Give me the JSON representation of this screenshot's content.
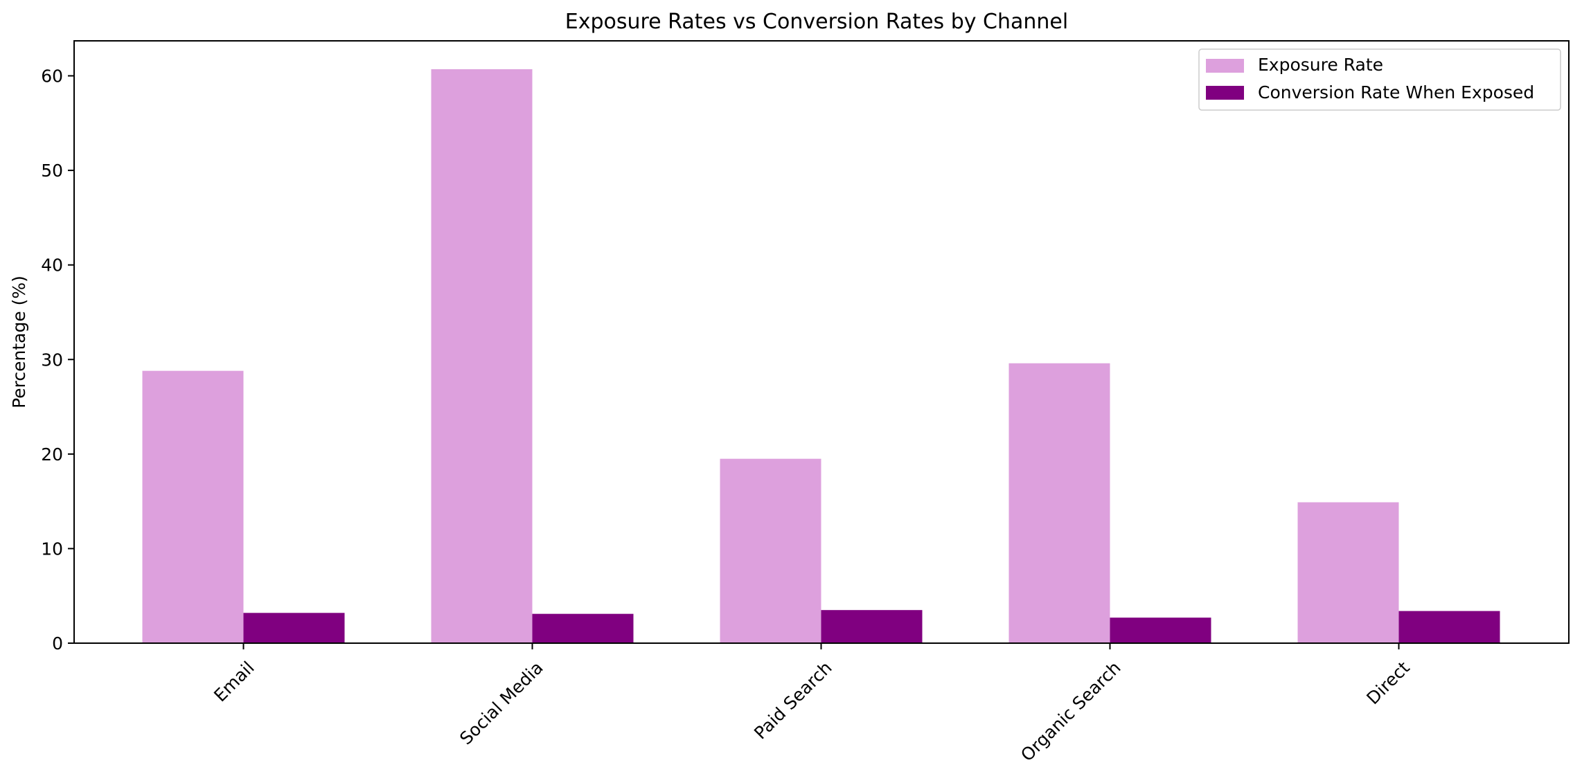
{
  "chart_data": {
    "type": "bar",
    "title": "Exposure Rates vs Conversion Rates by Channel",
    "xlabel": "",
    "ylabel": "Percentage (%)",
    "categories": [
      "Email",
      "Social Media",
      "Paid Search",
      "Organic Search",
      "Direct"
    ],
    "series": [
      {
        "name": "Exposure Rate",
        "color": "#dda0dd",
        "values": [
          28.8,
          60.7,
          19.5,
          29.6,
          14.9
        ]
      },
      {
        "name": "Conversion Rate When Exposed",
        "color": "#800080",
        "values": [
          3.2,
          3.1,
          3.5,
          2.7,
          3.4
        ]
      }
    ],
    "ylim": [
      0,
      63.7
    ],
    "yticks": [
      0,
      10,
      20,
      30,
      40,
      50,
      60
    ],
    "grid": false,
    "legend_position": "top-right",
    "xtick_rotation": 45
  }
}
